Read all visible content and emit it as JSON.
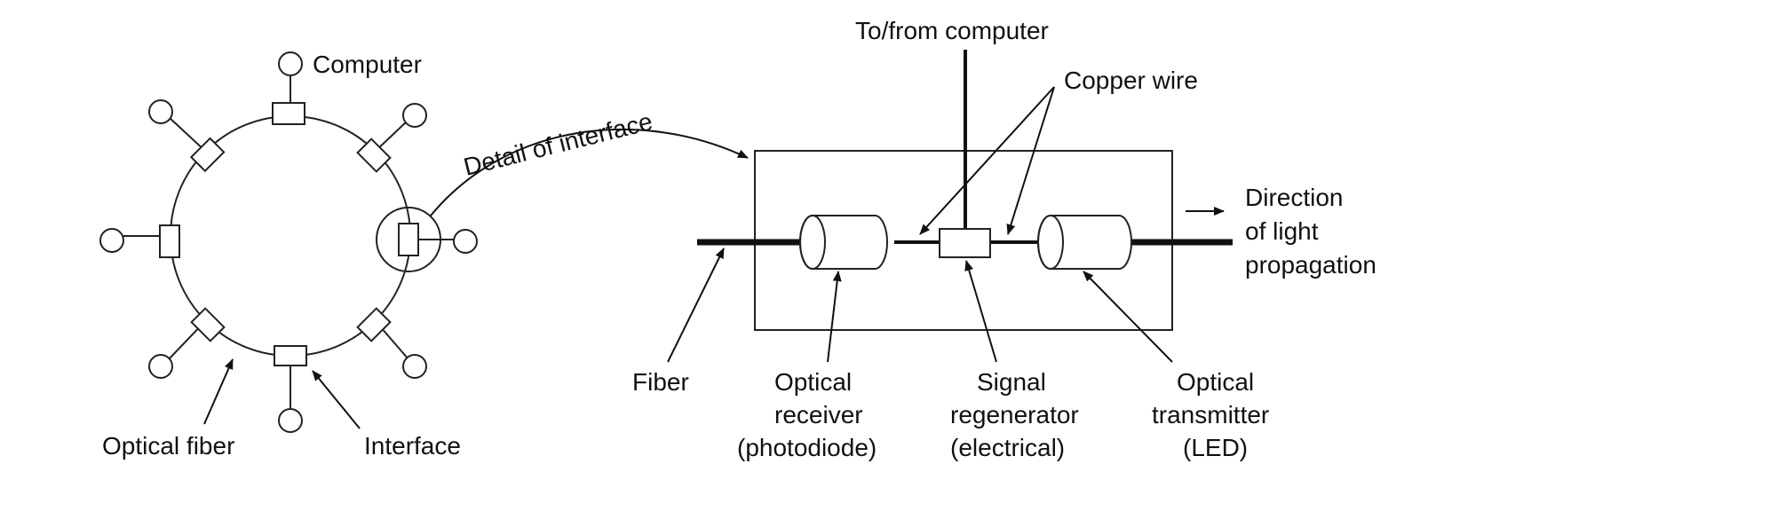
{
  "labels": {
    "computer": "Computer",
    "detail_of_interface": "Detail of interface",
    "optical_fiber": "Optical fiber",
    "interface": "Interface",
    "to_from_computer": "To/from computer",
    "copper_wire": "Copper wire",
    "direction_l1": "Direction",
    "direction_l2": "of light",
    "direction_l3": "propagation",
    "fiber": "Fiber",
    "receiver_l1": "Optical",
    "receiver_l2": "receiver",
    "receiver_l3": "(photodiode)",
    "regenerator_l1": "Signal",
    "regenerator_l2": "regenerator",
    "regenerator_l3": "(electrical)",
    "transmitter_l1": "Optical",
    "transmitter_l2": "transmitter",
    "transmitter_l3": "(LED)"
  },
  "colors": {
    "ink": "#111111",
    "background": "#ffffff"
  }
}
